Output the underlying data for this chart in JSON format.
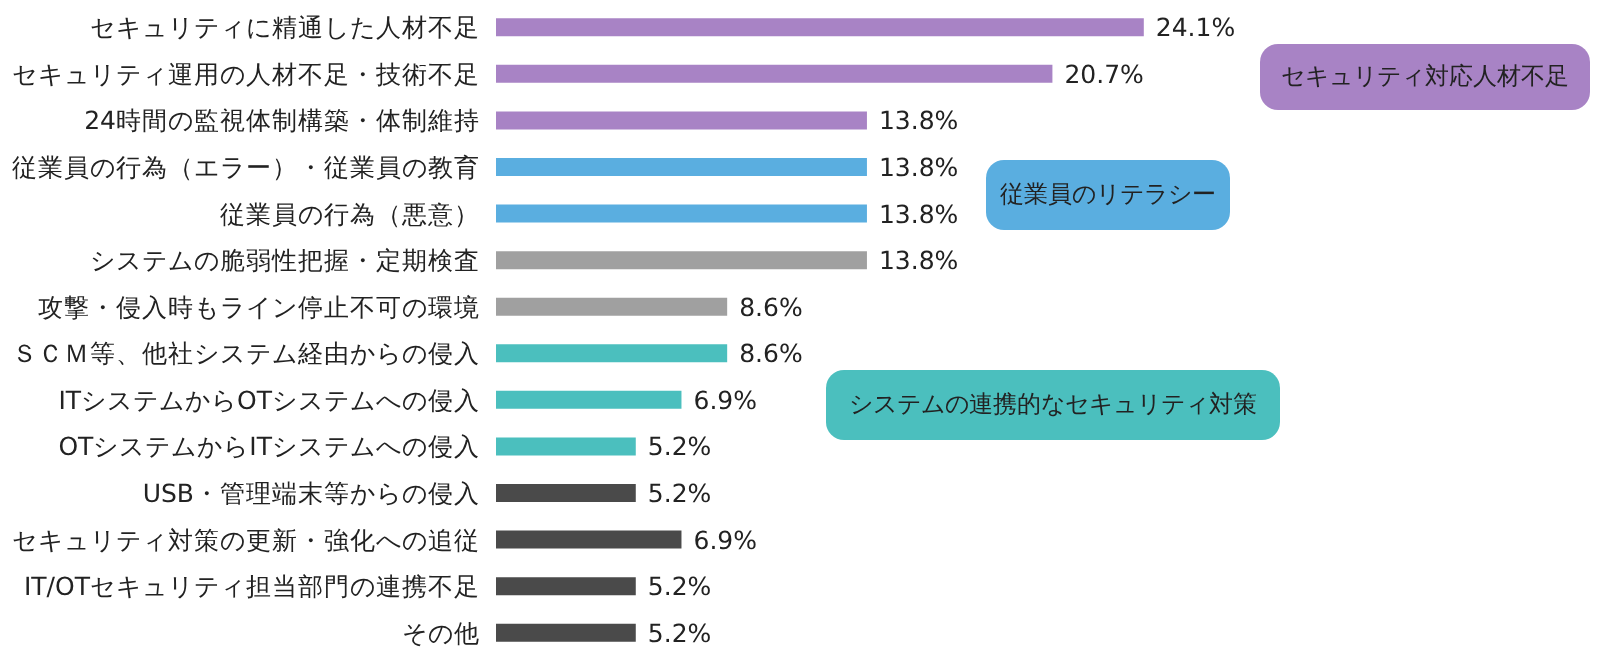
{
  "chart_data": {
    "type": "bar",
    "orientation": "horizontal",
    "categories": [
      "セキュリティに精通した人材不足",
      "セキュリティ運用の人材不足・技術不足",
      "24時間の監視体制構築・体制維持",
      "従業員の行為（エラー）・従業員の教育",
      "従業員の行為（悪意）",
      "システムの脆弱性把握・定期検査",
      "攻撃・侵入時もライン停止不可の環境",
      "ＳＣＭ等、他社システム経由からの侵入",
      "ITシステムからOTシステムへの侵入",
      "OTシステムからITシステムへの侵入",
      "USB・管理端末等からの侵入",
      "セキュリティ対策の更新・強化への追従",
      "IT/OTセキュリティ担当部門の連携不足",
      "その他"
    ],
    "values": [
      24.1,
      20.7,
      13.8,
      13.8,
      13.8,
      13.8,
      8.6,
      8.6,
      6.9,
      5.2,
      5.2,
      6.9,
      5.2,
      5.2
    ],
    "value_labels": [
      "24.1%",
      "20.7%",
      "13.8%",
      "13.8%",
      "13.8%",
      "13.8%",
      "8.6%",
      "8.6%",
      "6.9%",
      "5.2%",
      "5.2%",
      "6.9%",
      "5.2%",
      "5.2%"
    ],
    "colors": [
      "#a883c5",
      "#a883c5",
      "#a883c5",
      "#5aaee0",
      "#5aaee0",
      "#a0a0a0",
      "#a0a0a0",
      "#4bbfbe",
      "#4bbfbe",
      "#4bbfbe",
      "#4a4a4a",
      "#4a4a4a",
      "#4a4a4a",
      "#4a4a4a"
    ],
    "annotations": [
      "セキュリティ対応人材不足",
      "従業員のリテラシー",
      "システムの連携的なセキュリティ対策"
    ]
  }
}
